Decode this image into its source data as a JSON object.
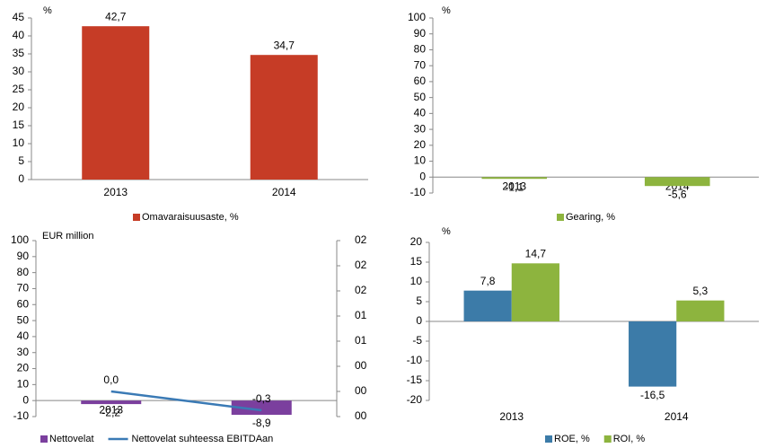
{
  "chart_data": [
    {
      "type": "bar",
      "y_label": "%",
      "categories": [
        "2013",
        "2014"
      ],
      "ylim": [
        0,
        45
      ],
      "yticks": [
        0,
        5,
        10,
        15,
        20,
        25,
        30,
        35,
        40,
        45
      ],
      "series": [
        {
          "name": "Omavaraisuusaste, %",
          "color": "#c63c26",
          "values": [
            42.7,
            34.7
          ],
          "value_labels": [
            "42,7",
            "34,7"
          ]
        }
      ]
    },
    {
      "type": "bar",
      "categories": [
        "2013",
        "2014"
      ],
      "y_label": "%",
      "ylim": [
        -10,
        100
      ],
      "yticks": [
        -10,
        0,
        10,
        20,
        30,
        40,
        50,
        60,
        70,
        80,
        90,
        100
      ],
      "series": [
        {
          "name": "Gearing, %",
          "color": "#8db43e",
          "values": [
            -1.1,
            -5.6
          ],
          "value_labels": [
            "-1,1",
            "-5,6"
          ]
        }
      ]
    },
    {
      "type": "combo",
      "y_label": "EUR million",
      "categories": [
        "2013",
        "2014"
      ],
      "ylim": [
        -10,
        100
      ],
      "yticks": [
        -10,
        0,
        10,
        20,
        30,
        40,
        50,
        60,
        70,
        80,
        90,
        100
      ],
      "y2lim": [
        -0.4,
        2.4
      ],
      "y2ticks": [
        {
          "value": -0.4,
          "label": "00"
        },
        {
          "value": 0.0,
          "label": "00"
        },
        {
          "value": 0.4,
          "label": "00"
        },
        {
          "value": 0.8,
          "label": "01"
        },
        {
          "value": 1.2,
          "label": "01"
        },
        {
          "value": 1.6,
          "label": "02"
        },
        {
          "value": 2.0,
          "label": "02"
        },
        {
          "value": 2.4,
          "label": "02"
        }
      ],
      "series": [
        {
          "name": "Nettovelat",
          "type": "bar",
          "color": "#7b3f9e",
          "values": [
            -2.2,
            -8.9
          ],
          "value_labels": [
            "-2,2",
            "-8,9"
          ]
        },
        {
          "name": "Nettovelat suhteessa EBITDAan",
          "type": "line",
          "axis": "y2",
          "color": "#3a7ab5",
          "values": [
            0.0,
            -0.3
          ],
          "value_labels": [
            "0,0",
            "-0,3"
          ]
        }
      ]
    },
    {
      "type": "bar",
      "y_label": "%",
      "categories": [
        "2013",
        "2014"
      ],
      "ylim": [
        -20,
        20
      ],
      "yticks": [
        -20,
        -15,
        -10,
        -5,
        0,
        5,
        10,
        15,
        20
      ],
      "series": [
        {
          "name": "ROE, %",
          "color": "#3c7ba8",
          "values": [
            7.8,
            -16.5
          ],
          "value_labels": [
            "7,8",
            "-16,5"
          ]
        },
        {
          "name": "ROI, %",
          "color": "#8db43e",
          "values": [
            14.7,
            5.3
          ],
          "value_labels": [
            "14,7",
            "5,3"
          ]
        }
      ]
    }
  ]
}
